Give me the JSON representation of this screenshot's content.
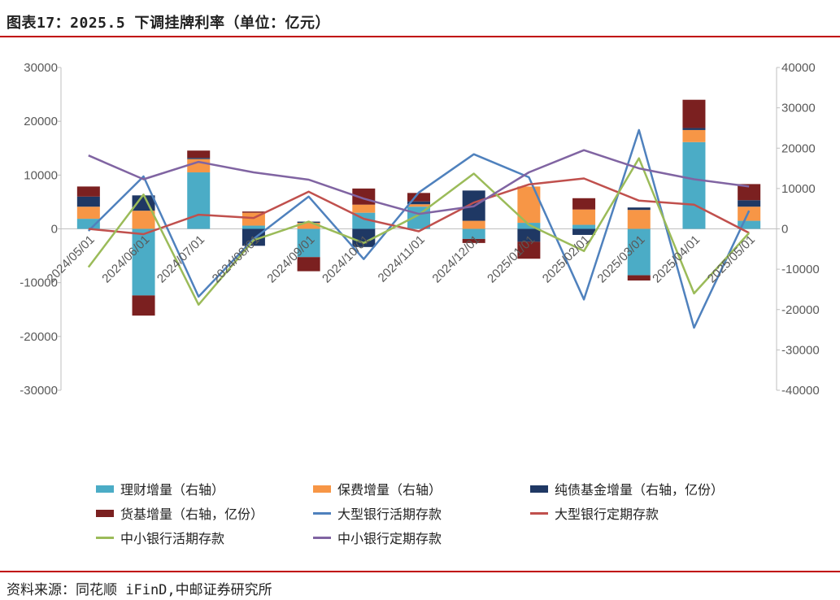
{
  "header": {
    "title": "图表17：2025.5 下调挂牌利率（单位：亿元）"
  },
  "footer": {
    "source": "资料来源：同花顺 iFinD,中邮证券研究所"
  },
  "chart_data": {
    "type": "bar",
    "subtype": "stacked bar + line, dual axis",
    "categories": [
      "2024/05/01",
      "2024/06/01",
      "2024/07/01",
      "2024/08/01",
      "2024/09/01",
      "2024/10/01",
      "2024/11/01",
      "2024/12/01",
      "2025/01/01",
      "2025/02/01",
      "2025/03/01",
      "2025/04/01",
      "2025/05/01"
    ],
    "left_axis": {
      "ylim": [
        -30000,
        30000
      ],
      "ticks": [
        -30000,
        -20000,
        -10000,
        0,
        10000,
        20000,
        30000
      ]
    },
    "right_axis": {
      "ylim": [
        -40000,
        40000
      ],
      "ticks": [
        -40000,
        -30000,
        -20000,
        -10000,
        0,
        10000,
        20000,
        30000,
        40000
      ]
    },
    "bar_series": [
      {
        "name": "理财增量（右轴）",
        "color": "#4bacc6",
        "values": [
          2500,
          -16500,
          14000,
          800,
          -7000,
          4000,
          5500,
          -2500,
          1500,
          1000,
          -11500,
          21500,
          2000
        ]
      },
      {
        "name": "保费增量（右轴）",
        "color": "#f79646",
        "values": [
          3000,
          4500,
          3300,
          3200,
          1500,
          2000,
          600,
          2000,
          9000,
          3800,
          4700,
          3000,
          3500
        ]
      },
      {
        "name": "纯债基金增量（右轴，亿份）",
        "color": "#1f3864",
        "values": [
          2500,
          3800,
          300,
          -4200,
          300,
          -4500,
          700,
          7500,
          -3200,
          -1500,
          600,
          500,
          1600
        ]
      },
      {
        "name": "货基增量（右轴，亿份）",
        "color": "#7b2020",
        "values": [
          2500,
          -5000,
          1800,
          300,
          -3500,
          4000,
          2100,
          -1000,
          -4200,
          2800,
          -1300,
          7000,
          4000
        ]
      }
    ],
    "line_series": [
      {
        "name": "大型银行活期存款",
        "color": "#4f81bd",
        "values": [
          -500,
          13000,
          -16800,
          -2500,
          8000,
          -7500,
          9000,
          18500,
          12800,
          -17500,
          24500,
          -24500,
          4500
        ]
      },
      {
        "name": "大型银行定期存款",
        "color": "#c0504d",
        "values": [
          0,
          -1300,
          3500,
          2700,
          9200,
          2500,
          -600,
          6500,
          11000,
          12500,
          7000,
          6000,
          -1000
        ]
      },
      {
        "name": "中小银行活期存款",
        "color": "#9bbb59",
        "values": [
          -9500,
          8500,
          -18800,
          -2800,
          1800,
          -3500,
          3500,
          13700,
          1000,
          -5500,
          17500,
          -16000,
          -1000
        ]
      },
      {
        "name": "中小银行定期存款",
        "color": "#8064a2",
        "values": [
          18200,
          12300,
          16600,
          14000,
          12200,
          7500,
          3700,
          5600,
          14000,
          19500,
          15000,
          12300,
          10500
        ]
      }
    ]
  },
  "legend": [
    {
      "label": "理财增量（右轴）",
      "color": "#4bacc6",
      "kind": "bar"
    },
    {
      "label": "保费增量（右轴）",
      "color": "#f79646",
      "kind": "bar"
    },
    {
      "label": "纯债基金增量（右轴，亿份）",
      "color": "#1f3864",
      "kind": "bar"
    },
    {
      "label": "货基增量（右轴，亿份）",
      "color": "#7b2020",
      "kind": "bar"
    },
    {
      "label": "大型银行活期存款",
      "color": "#4f81bd",
      "kind": "line"
    },
    {
      "label": "大型银行定期存款",
      "color": "#c0504d",
      "kind": "line"
    },
    {
      "label": "中小银行活期存款",
      "color": "#9bbb59",
      "kind": "line"
    },
    {
      "label": "中小银行定期存款",
      "color": "#8064a2",
      "kind": "line"
    }
  ]
}
